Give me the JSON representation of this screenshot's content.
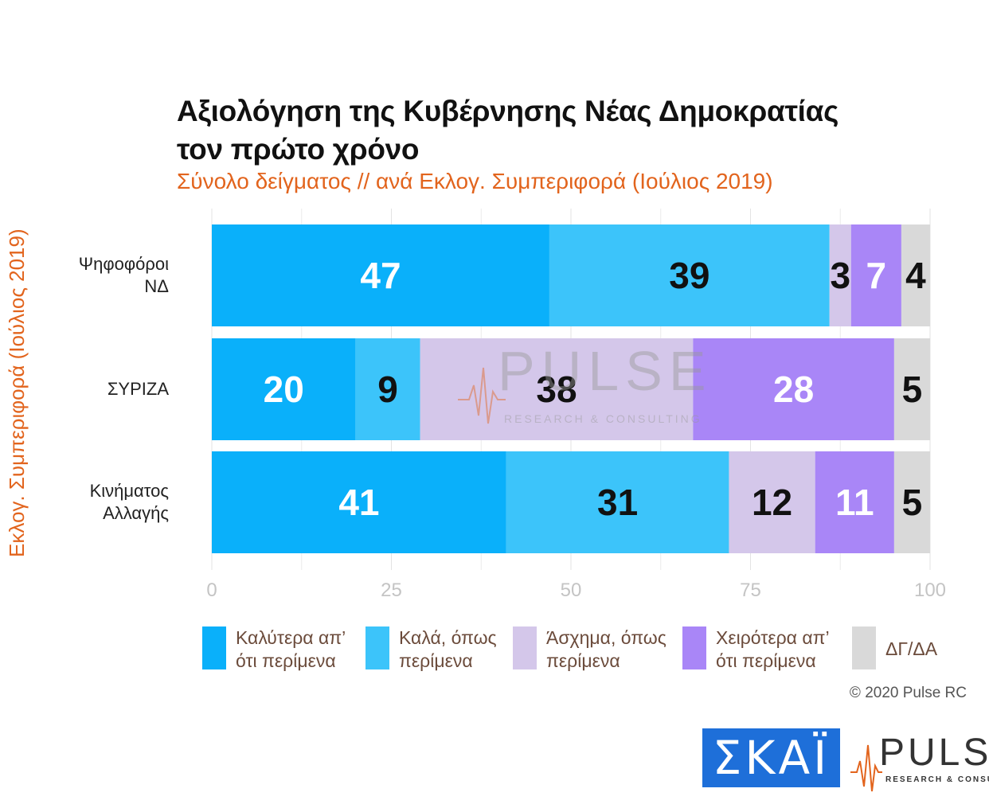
{
  "chart_data": {
    "type": "bar",
    "orientation": "horizontal",
    "stacked": true,
    "title": [
      "Αξιολόγηση της Κυβέρνησης Νέας Δημοκρατίας",
      "τον πρώτο χρόνο"
    ],
    "subtitle": "Σύνολο δείγματος // ανά Εκλογ. Συμπεριφορά (Ιούλιος 2019)",
    "ylabel": "Εκλογ. Συμπεριφορά (Ιούλιος 2019)",
    "xlabel": "",
    "xlim": [
      0,
      100
    ],
    "xticks": [
      "0",
      "25",
      "50",
      "75",
      "100"
    ],
    "grid": true,
    "legend_position": "bottom",
    "categories": [
      "Ψηφοφόροι\nΝΔ",
      "ΣΥΡΙΖΑ",
      "Κινήματος\nΑλλαγής"
    ],
    "series": [
      {
        "name": "Καλύτερα απ’\nότι περίμενα",
        "color": "#0ab0fa",
        "label_color": "#ffffff",
        "values": [
          47,
          20,
          41
        ]
      },
      {
        "name": "Καλά, όπως\nπερίμενα",
        "color": "#3cc4fa",
        "label_color": "#111111",
        "values": [
          39,
          9,
          31
        ]
      },
      {
        "name": "Άσχημα, όπως\nπερίμενα",
        "color": "#d4c7ea",
        "label_color": "#111111",
        "values": [
          3,
          38,
          12
        ]
      },
      {
        "name": "Χειρότερα απ’\nότι περίμενα",
        "color": "#a986f7",
        "label_color": "#ffffff",
        "values": [
          7,
          28,
          11
        ]
      },
      {
        "name": "ΔΓ/ΔΑ",
        "color": "#d9d9d9",
        "label_color": "#111111",
        "values": [
          4,
          5,
          5
        ]
      }
    ]
  },
  "footer": {
    "copyright": "© 2020 Pulse RC",
    "logo_skai": "ΣΚΑΪ",
    "logo_pulse": "PULS",
    "logo_pulse_tag": "RESEARCH & CONSULT"
  },
  "watermark": {
    "word": "PULSE",
    "tag": "RESEARCH & CONSULTING"
  }
}
